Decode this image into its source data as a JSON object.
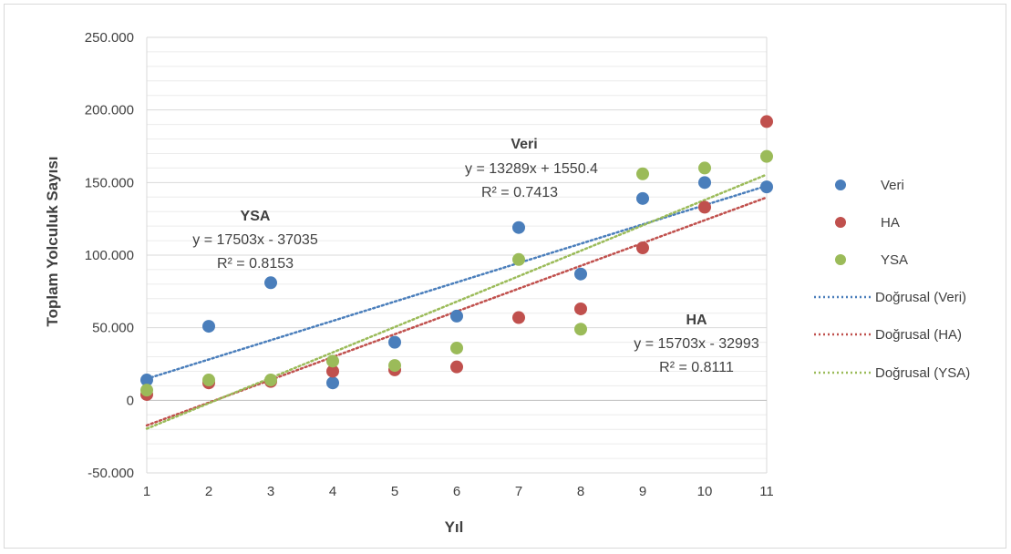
{
  "chart_data": {
    "type": "scatter",
    "xlabel": "Yıl",
    "ylabel": "Toplam Yolculuk Sayısı",
    "xlim": [
      1,
      11
    ],
    "ylim": [
      -50000,
      250000
    ],
    "x_ticks": [
      "1",
      "2",
      "3",
      "4",
      "5",
      "6",
      "7",
      "8",
      "9",
      "10",
      "11"
    ],
    "y_ticks": [
      "250.000",
      "200.000",
      "150.000",
      "100.000",
      "50.000",
      "0",
      "-50.000"
    ],
    "y_tick_values": [
      250000,
      200000,
      150000,
      100000,
      50000,
      0,
      -50000
    ],
    "grid": true,
    "legend_position": "right",
    "series": [
      {
        "name": "Veri",
        "color": "#4a7ebb",
        "x": [
          1,
          2,
          3,
          4,
          5,
          6,
          7,
          8,
          9,
          10,
          11
        ],
        "y": [
          14000,
          51000,
          81000,
          12000,
          40000,
          58000,
          119000,
          87000,
          139000,
          150000,
          147000
        ]
      },
      {
        "name": "HA",
        "color": "#c0504d",
        "x": [
          1,
          2,
          3,
          4,
          5,
          6,
          7,
          8,
          9,
          10,
          11
        ],
        "y": [
          4000,
          12000,
          13000,
          20000,
          21000,
          23000,
          57000,
          63000,
          105000,
          133000,
          192000
        ]
      },
      {
        "name": "YSA",
        "color": "#9bbb59",
        "x": [
          1,
          2,
          3,
          4,
          5,
          6,
          7,
          8,
          9,
          10,
          11
        ],
        "y": [
          7000,
          14000,
          14000,
          27000,
          24000,
          36000,
          97000,
          49000,
          156000,
          160000,
          168000
        ]
      }
    ],
    "trendlines": [
      {
        "name": "Doğrusal (Veri)",
        "color": "#4a7ebb",
        "slope": 13289,
        "intercept": 1550.4
      },
      {
        "name": "Doğrusal (HA)",
        "color": "#c0504d",
        "slope": 15703,
        "intercept": -32993
      },
      {
        "name": "Doğrusal (YSA)",
        "color": "#9bbb59",
        "slope": 17503,
        "intercept": -37035
      }
    ],
    "annotations": [
      {
        "title": "YSA",
        "equation": "y = 17503x - 37035",
        "r2": "R² = 0.8153"
      },
      {
        "title": "Veri",
        "equation": "y = 13289x + 1550.4",
        "r2": "R² = 0.7413"
      },
      {
        "title": "HA",
        "equation": "y = 15703x - 32993",
        "r2": "R² = 0.8111"
      }
    ]
  }
}
